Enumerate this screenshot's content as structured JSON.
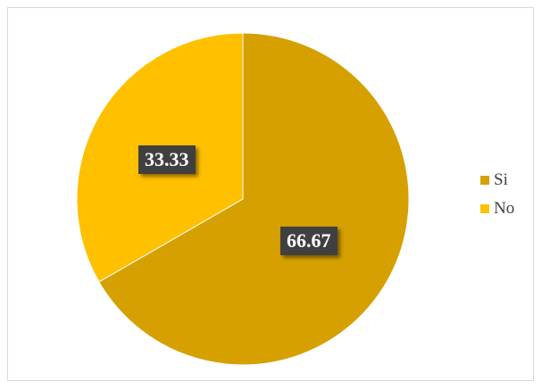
{
  "chart_data": {
    "type": "pie",
    "categories": [
      "Si",
      "No"
    ],
    "values": [
      66.67,
      33.33
    ],
    "value_labels": [
      "66.67",
      "33.33"
    ],
    "colors": [
      "#D5A000",
      "#FFC000"
    ],
    "start_angle_deg": 0,
    "direction": "clockwise",
    "legend_position": "right",
    "title": ""
  },
  "legend": {
    "items": [
      {
        "label": "Si",
        "color": "#D5A000"
      },
      {
        "label": "No",
        "color": "#FFC000"
      }
    ]
  },
  "labels": {
    "slice_0": "66.67",
    "slice_1": "33.33"
  }
}
